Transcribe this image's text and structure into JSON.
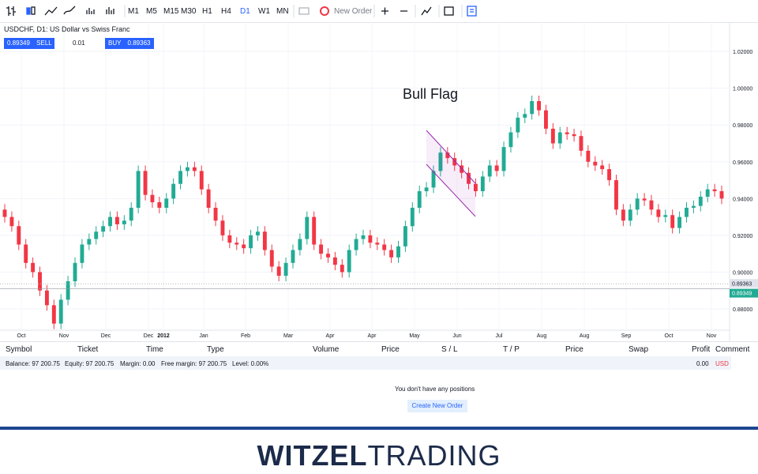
{
  "toolbar": {
    "timeframes": [
      "M1",
      "M5",
      "M15",
      "M30",
      "H1",
      "H4",
      "D1",
      "W1",
      "MN"
    ],
    "active": "D1",
    "new_order": "New Order"
  },
  "symbol_title": "USDCHF, D1: US Dollar vs Swiss Franc",
  "trade_panel": {
    "sell_price": "0.89349",
    "sell": "SELL",
    "volume": "0.01",
    "buy": "BUY",
    "buy_price": "0.89363"
  },
  "chart_data": {
    "type": "candlestick",
    "annotation": "Bull Flag",
    "up_color": "#22ab94",
    "down_color": "#f23645",
    "ylim": [
      0.8684,
      1.0351
    ],
    "yticks": [
      {
        "value": 1.02,
        "label": "1.02000"
      },
      {
        "value": 1.0,
        "label": "1.00000"
      },
      {
        "value": 0.98,
        "label": "0.98000"
      },
      {
        "value": 0.96,
        "label": "0.96000"
      },
      {
        "value": 0.94,
        "label": "0.94000"
      },
      {
        "value": 0.92,
        "label": "0.92000"
      },
      {
        "value": 0.9,
        "label": "0.90000"
      },
      {
        "value": 0.88,
        "label": "0.88000"
      }
    ],
    "ask_line": 0.89363,
    "bid_line": 0.89349,
    "x_labels": [
      "Oct",
      "Nov",
      "Dec",
      "Dec",
      "2012",
      "Jan",
      "Feb",
      "Mar",
      "Apr",
      "Apr",
      "May",
      "Jun",
      "Jul",
      "Aug",
      "Aug",
      "Sep",
      "Oct",
      "Nov"
    ],
    "candles": [
      [
        0.934,
        0.937,
        0.927,
        0.93
      ],
      [
        0.93,
        0.933,
        0.922,
        0.925
      ],
      [
        0.925,
        0.928,
        0.912,
        0.915
      ],
      [
        0.915,
        0.918,
        0.902,
        0.905
      ],
      [
        0.905,
        0.908,
        0.897,
        0.9
      ],
      [
        0.9,
        0.903,
        0.887,
        0.89
      ],
      [
        0.89,
        0.893,
        0.879,
        0.882
      ],
      [
        0.882,
        0.885,
        0.869,
        0.872
      ],
      [
        0.872,
        0.888,
        0.869,
        0.885
      ],
      [
        0.885,
        0.898,
        0.882,
        0.895
      ],
      [
        0.895,
        0.908,
        0.892,
        0.905
      ],
      [
        0.905,
        0.918,
        0.902,
        0.915
      ],
      [
        0.915,
        0.921,
        0.912,
        0.918
      ],
      [
        0.918,
        0.925,
        0.915,
        0.922
      ],
      [
        0.922,
        0.928,
        0.919,
        0.925
      ],
      [
        0.925,
        0.933,
        0.922,
        0.93
      ],
      [
        0.93,
        0.933,
        0.923,
        0.926
      ],
      [
        0.926,
        0.931,
        0.923,
        0.928
      ],
      [
        0.928,
        0.938,
        0.925,
        0.935
      ],
      [
        0.935,
        0.958,
        0.932,
        0.955
      ],
      [
        0.955,
        0.958,
        0.939,
        0.942
      ],
      [
        0.942,
        0.945,
        0.935,
        0.938
      ],
      [
        0.938,
        0.941,
        0.932,
        0.935
      ],
      [
        0.935,
        0.943,
        0.932,
        0.94
      ],
      [
        0.94,
        0.951,
        0.937,
        0.948
      ],
      [
        0.948,
        0.958,
        0.945,
        0.955
      ],
      [
        0.955,
        0.96,
        0.952,
        0.957
      ],
      [
        0.957,
        0.96,
        0.952,
        0.955
      ],
      [
        0.955,
        0.958,
        0.942,
        0.945
      ],
      [
        0.945,
        0.948,
        0.932,
        0.935
      ],
      [
        0.935,
        0.938,
        0.925,
        0.928
      ],
      [
        0.928,
        0.931,
        0.917,
        0.92
      ],
      [
        0.92,
        0.923,
        0.913,
        0.916
      ],
      [
        0.916,
        0.919,
        0.912,
        0.915
      ],
      [
        0.915,
        0.918,
        0.91,
        0.913
      ],
      [
        0.913,
        0.923,
        0.91,
        0.92
      ],
      [
        0.92,
        0.925,
        0.917,
        0.922
      ],
      [
        0.922,
        0.925,
        0.909,
        0.912
      ],
      [
        0.912,
        0.915,
        0.9,
        0.903
      ],
      [
        0.903,
        0.906,
        0.895,
        0.898
      ],
      [
        0.898,
        0.908,
        0.895,
        0.905
      ],
      [
        0.905,
        0.915,
        0.902,
        0.912
      ],
      [
        0.912,
        0.921,
        0.909,
        0.918
      ],
      [
        0.918,
        0.933,
        0.915,
        0.93
      ],
      [
        0.93,
        0.933,
        0.912,
        0.915
      ],
      [
        0.915,
        0.918,
        0.907,
        0.91
      ],
      [
        0.91,
        0.913,
        0.905,
        0.908
      ],
      [
        0.908,
        0.911,
        0.901,
        0.904
      ],
      [
        0.904,
        0.907,
        0.897,
        0.9
      ],
      [
        0.9,
        0.915,
        0.897,
        0.912
      ],
      [
        0.912,
        0.921,
        0.909,
        0.918
      ],
      [
        0.918,
        0.923,
        0.915,
        0.92
      ],
      [
        0.92,
        0.923,
        0.913,
        0.916
      ],
      [
        0.916,
        0.919,
        0.912,
        0.915
      ],
      [
        0.915,
        0.918,
        0.909,
        0.912
      ],
      [
        0.912,
        0.915,
        0.905,
        0.908
      ],
      [
        0.908,
        0.917,
        0.905,
        0.914
      ],
      [
        0.914,
        0.928,
        0.911,
        0.925
      ],
      [
        0.925,
        0.938,
        0.922,
        0.935
      ],
      [
        0.935,
        0.947,
        0.932,
        0.944
      ],
      [
        0.944,
        0.949,
        0.941,
        0.946
      ],
      [
        0.946,
        0.958,
        0.943,
        0.955
      ],
      [
        0.955,
        0.968,
        0.952,
        0.965
      ],
      [
        0.965,
        0.968,
        0.959,
        0.962
      ],
      [
        0.962,
        0.965,
        0.955,
        0.958
      ],
      [
        0.958,
        0.961,
        0.951,
        0.954
      ],
      [
        0.954,
        0.957,
        0.945,
        0.948
      ],
      [
        0.948,
        0.951,
        0.941,
        0.944
      ],
      [
        0.944,
        0.955,
        0.941,
        0.952
      ],
      [
        0.952,
        0.961,
        0.949,
        0.958
      ],
      [
        0.958,
        0.961,
        0.952,
        0.955
      ],
      [
        0.955,
        0.971,
        0.952,
        0.968
      ],
      [
        0.968,
        0.979,
        0.965,
        0.976
      ],
      [
        0.976,
        0.987,
        0.973,
        0.984
      ],
      [
        0.984,
        0.989,
        0.981,
        0.986
      ],
      [
        0.986,
        0.996,
        0.983,
        0.993
      ],
      [
        0.993,
        0.996,
        0.985,
        0.988
      ],
      [
        0.988,
        0.991,
        0.975,
        0.978
      ],
      [
        0.978,
        0.981,
        0.967,
        0.97
      ],
      [
        0.97,
        0.979,
        0.967,
        0.976
      ],
      [
        0.976,
        0.979,
        0.972,
        0.975
      ],
      [
        0.975,
        0.978,
        0.971,
        0.974
      ],
      [
        0.974,
        0.977,
        0.963,
        0.966
      ],
      [
        0.966,
        0.969,
        0.957,
        0.96
      ],
      [
        0.96,
        0.963,
        0.955,
        0.958
      ],
      [
        0.958,
        0.961,
        0.953,
        0.956
      ],
      [
        0.956,
        0.959,
        0.947,
        0.95
      ],
      [
        0.95,
        0.953,
        0.931,
        0.934
      ],
      [
        0.934,
        0.937,
        0.925,
        0.928
      ],
      [
        0.928,
        0.937,
        0.925,
        0.934
      ],
      [
        0.934,
        0.943,
        0.931,
        0.94
      ],
      [
        0.94,
        0.943,
        0.936,
        0.939
      ],
      [
        0.939,
        0.942,
        0.931,
        0.934
      ],
      [
        0.934,
        0.937,
        0.927,
        0.93
      ],
      [
        0.93,
        0.934,
        0.927,
        0.931
      ],
      [
        0.931,
        0.934,
        0.921,
        0.924
      ],
      [
        0.924,
        0.933,
        0.921,
        0.93
      ],
      [
        0.93,
        0.938,
        0.927,
        0.935
      ],
      [
        0.935,
        0.939,
        0.932,
        0.936
      ],
      [
        0.936,
        0.944,
        0.933,
        0.941
      ],
      [
        0.941,
        0.948,
        0.938,
        0.945
      ],
      [
        0.945,
        0.948,
        0.941,
        0.944
      ],
      [
        0.944,
        0.947,
        0.937,
        0.94
      ]
    ]
  },
  "positions": {
    "columns": [
      "Symbol",
      "Ticket",
      "Time",
      "Type",
      "Volume",
      "Price",
      "S / L",
      "T / P",
      "Price",
      "Swap",
      "Profit",
      "Comment"
    ],
    "balance": "Balance: 97 200.75",
    "equity": "Equity: 97 200.75",
    "margin": "Margin: 0.00",
    "free_margin": "Free margin: 97 200.75",
    "level": "Level: 0.00%",
    "profit": "0.00",
    "currency": "USD",
    "empty_message": "You don't have any positions",
    "create_button": "Create New Order"
  },
  "logo": {
    "bold": "WITZEL",
    "light": "TRADING"
  }
}
